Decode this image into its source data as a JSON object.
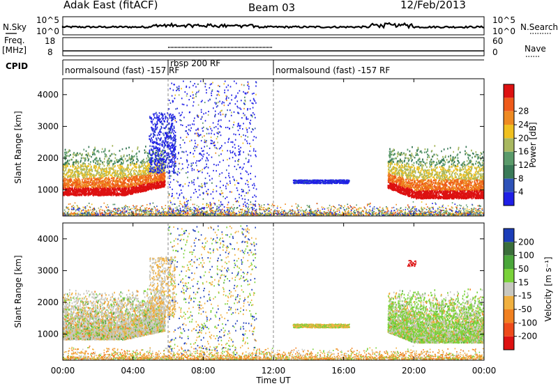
{
  "header": {
    "title": "Adak East (fitACF)",
    "beam": "Beam 03",
    "date": "12/Feb/2013"
  },
  "side_labels": {
    "nsky": "N.Sky",
    "freq": "Freq.",
    "freq_unit": "[MHz]",
    "cpid": "CPID",
    "nsearch": "N.Search",
    "nave": "Nave"
  },
  "small_axes": {
    "nsky_ticks": [
      "10^5",
      "10^0"
    ],
    "nsearch_ticks": [
      "10^5",
      "10^0"
    ],
    "freq_ticks": [
      "18",
      "8"
    ],
    "nave_ticks": [
      "60",
      "0"
    ]
  },
  "cpid_segments": [
    {
      "label": "normalsound (fast) -157 RF",
      "start_h": 0,
      "end_h": 6
    },
    {
      "label": "rbsp 200 RF",
      "start_h": 6,
      "end_h": 12
    },
    {
      "label": "normalsound (fast) -157 RF",
      "start_h": 12,
      "end_h": 24
    }
  ],
  "chart_data": [
    {
      "type": "heatmap",
      "ylabel": "Slant Range [km]",
      "xlabel": "Time UT",
      "xlim_h": [
        0,
        24
      ],
      "ylim": [
        180,
        4500
      ],
      "y_ticks": [
        "1000",
        "2000",
        "3000",
        "4000"
      ],
      "y_tick_values": [
        1000,
        2000,
        3000,
        4000
      ],
      "colorbar": {
        "label": "Power [dB]",
        "ticks": [
          "4",
          "8",
          "12",
          "16",
          "20",
          "24",
          "28"
        ],
        "colors": [
          "#1f1fe6",
          "#2e52b8",
          "#3a7a58",
          "#5a9a6a",
          "#a8b860",
          "#f0c020",
          "#ee8a22",
          "#ee5a1a",
          "#dd1111"
        ]
      }
    },
    {
      "type": "heatmap",
      "ylabel": "Slant Range [km]",
      "xlabel": "Time UT",
      "xlim_h": [
        0,
        24
      ],
      "ylim": [
        180,
        4500
      ],
      "y_ticks": [
        "1000",
        "2000",
        "3000",
        "4000"
      ],
      "y_tick_values": [
        1000,
        2000,
        3000,
        4000
      ],
      "colorbar": {
        "label": "Velocity [m s⁻¹]",
        "ticks": [
          "200",
          "100",
          "50",
          "15",
          "-15",
          "-50",
          "-100",
          "-200"
        ],
        "colors": [
          "#1c3db8",
          "#3a6e3a",
          "#4aa63a",
          "#7ad23a",
          "#c8c8c0",
          "#f0b040",
          "#f08020",
          "#ee4a1a",
          "#dd1111"
        ]
      }
    }
  ],
  "x_ticks": [
    "00:00",
    "04:00",
    "08:00",
    "12:00",
    "16:00",
    "20:00",
    "00:00"
  ],
  "x_tick_hours": [
    0,
    4,
    8,
    12,
    16,
    20,
    24
  ],
  "x_title": "Time UT"
}
